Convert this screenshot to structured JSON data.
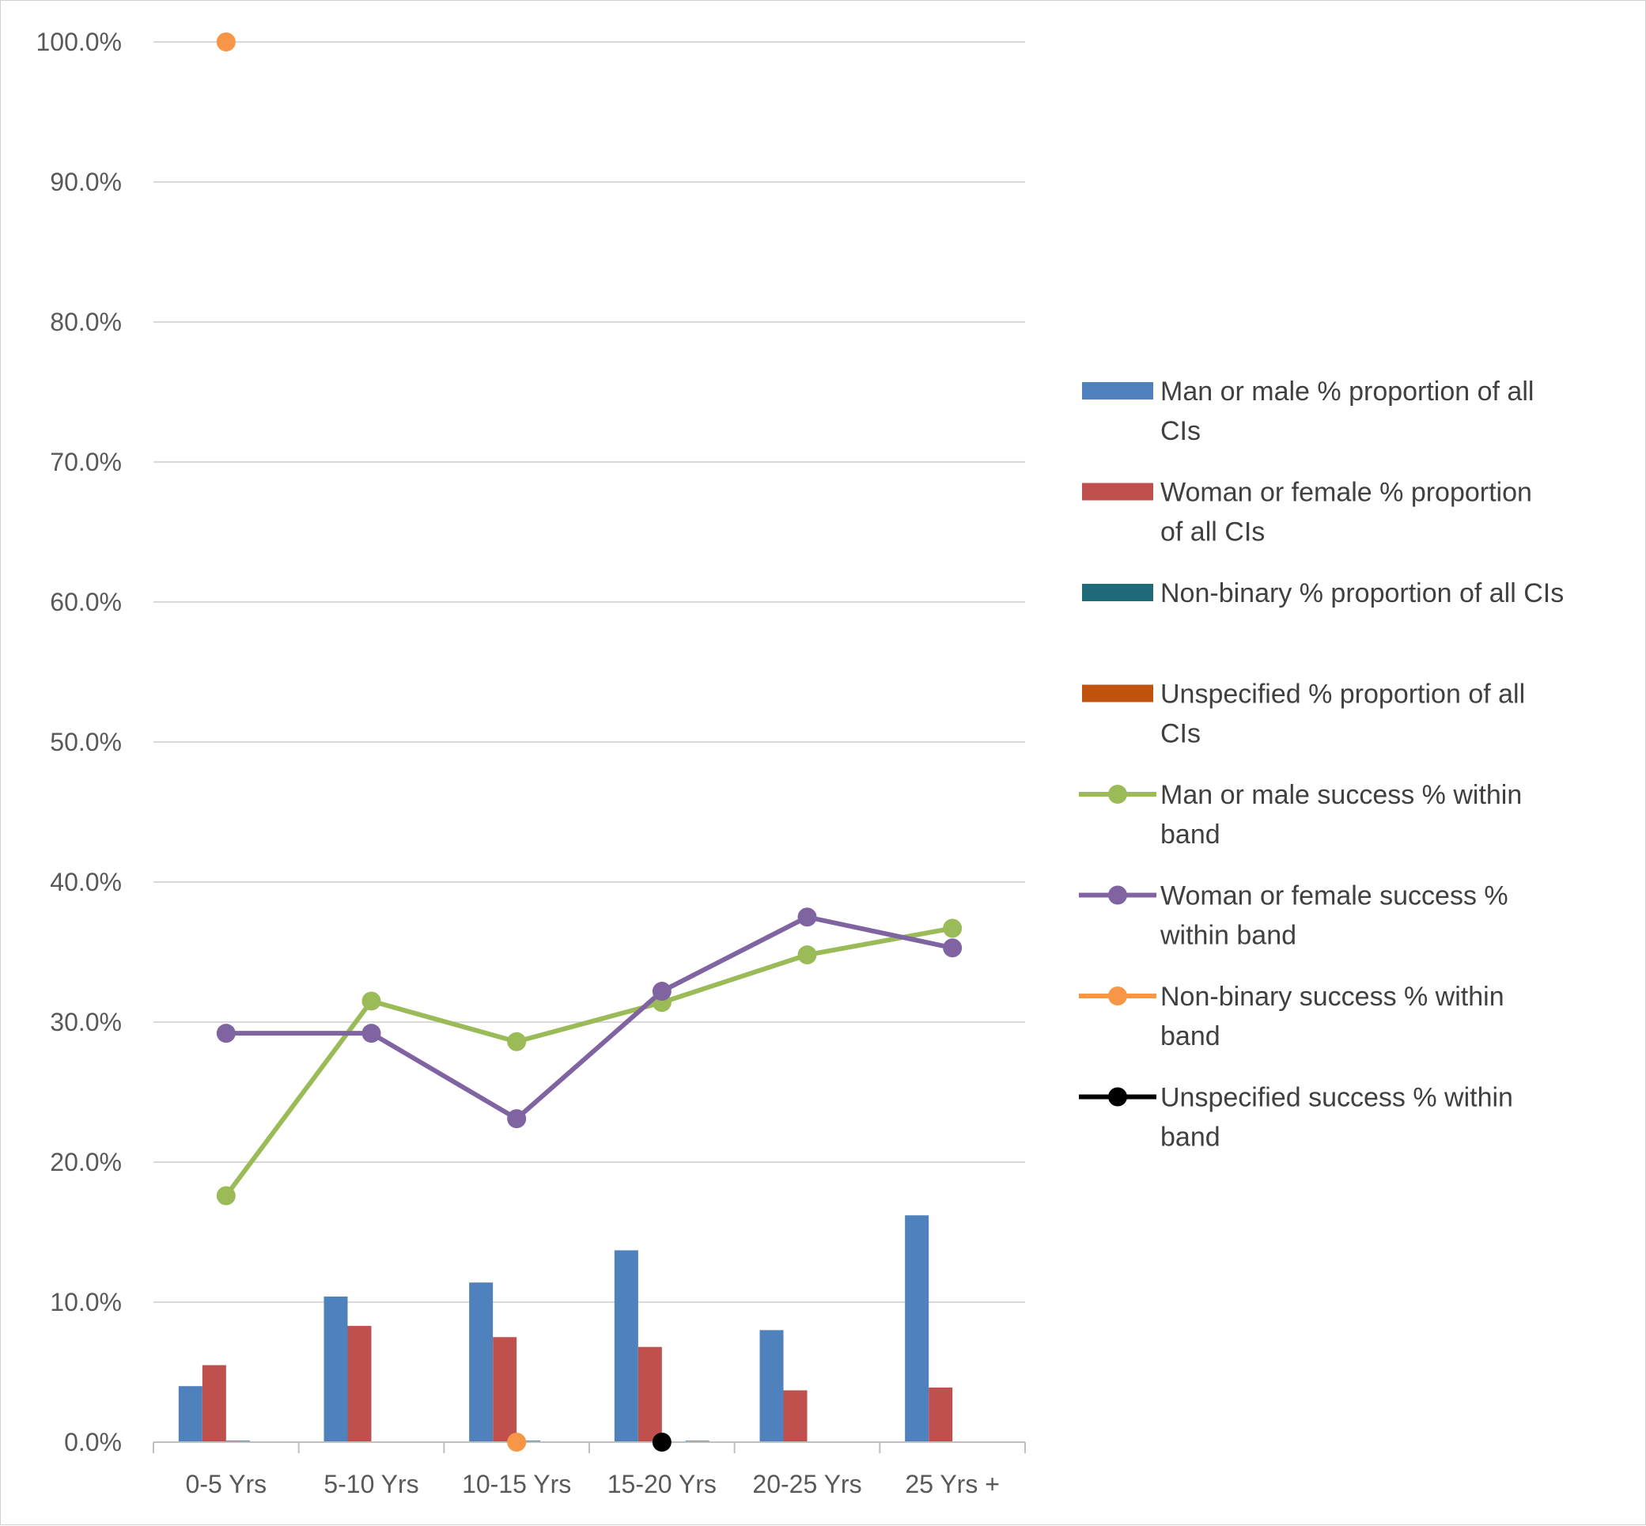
{
  "chart_data": {
    "type": "bar",
    "categories": [
      "0-5 Yrs",
      "5-10 Yrs",
      "10-15 Yrs",
      "15-20 Yrs",
      "20-25 Yrs",
      "25 Yrs +"
    ],
    "y_axis": {
      "min": 0,
      "max": 100,
      "step": 10,
      "tick_labels": [
        "0.0%",
        "10.0%",
        "20.0%",
        "30.0%",
        "40.0%",
        "50.0%",
        "60.0%",
        "70.0%",
        "80.0%",
        "90.0%",
        "100.0%"
      ]
    },
    "grid": true,
    "legend_position": "right",
    "series": [
      {
        "name": "Man or male % proportion of all CIs",
        "kind": "bar",
        "color": "#4f81bd",
        "values": [
          4.0,
          10.4,
          11.4,
          13.7,
          8.0,
          16.2
        ]
      },
      {
        "name": "Woman or female % proportion of all CIs",
        "kind": "bar",
        "color": "#c0504d",
        "values": [
          5.5,
          8.3,
          7.5,
          6.8,
          3.7,
          3.9
        ]
      },
      {
        "name": "Non-binary % proportion of all CIs",
        "kind": "bar",
        "color": "#1f6b7a",
        "values": [
          0.1,
          0.0,
          0.1,
          0.0,
          0.0,
          0.0
        ]
      },
      {
        "name": "Unspecified % proportion of all CIs",
        "kind": "bar",
        "color": "#c0540f",
        "values": [
          0.0,
          0.0,
          0.0,
          0.1,
          0.0,
          0.0
        ]
      },
      {
        "name": "Man or male success % within band",
        "kind": "line",
        "color": "#9bbb59",
        "values": [
          17.6,
          31.5,
          28.6,
          31.4,
          34.8,
          36.7
        ]
      },
      {
        "name": "Woman or female success % within band",
        "kind": "line",
        "color": "#8064a2",
        "values": [
          29.2,
          29.2,
          23.1,
          32.2,
          37.5,
          35.3
        ]
      },
      {
        "name": "Non-binary  success % within band",
        "kind": "marker",
        "color": "#f79646",
        "values": [
          100.0,
          null,
          0.0,
          null,
          null,
          null
        ]
      },
      {
        "name": "Unspecified success % within band",
        "kind": "marker",
        "color": "#000000",
        "values": [
          null,
          null,
          null,
          0.0,
          null,
          null
        ]
      }
    ],
    "legend": [
      {
        "kind": "bar",
        "color": "#4f81bd",
        "lines": [
          "Man or male % proportion of all",
          "CIs"
        ]
      },
      {
        "kind": "bar",
        "color": "#c0504d",
        "lines": [
          "Woman or female % proportion",
          "of all CIs"
        ]
      },
      {
        "kind": "bar",
        "color": "#1f6b7a",
        "lines": [
          "Non-binary % proportion of all CIs"
        ]
      },
      {
        "kind": "bar",
        "color": "#c0540f",
        "lines": [
          "Unspecified % proportion of all",
          "CIs"
        ]
      },
      {
        "kind": "line",
        "color": "#9bbb59",
        "lines": [
          "Man or male success % within",
          "band"
        ]
      },
      {
        "kind": "line",
        "color": "#8064a2",
        "lines": [
          "Woman or female success %",
          "within band"
        ]
      },
      {
        "kind": "line",
        "color": "#f79646",
        "lines": [
          "Non-binary  success % within",
          "band"
        ]
      },
      {
        "kind": "line",
        "color": "#000000",
        "lines": [
          "Unspecified success % within",
          "band"
        ]
      }
    ]
  }
}
